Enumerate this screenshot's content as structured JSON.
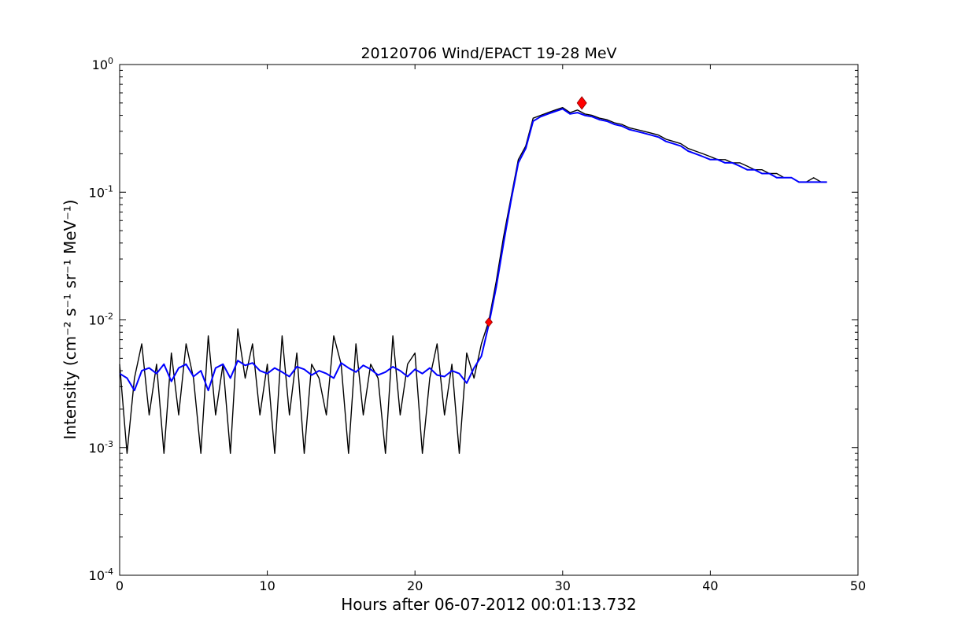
{
  "chart_data": {
    "type": "line",
    "title": "20120706 Wind/EPACT 19-28 MeV",
    "xlabel": "Hours after 06-07-2012 00:01:13.732",
    "ylabel": "Intensity (cm⁻² s⁻¹ sr⁻¹ MeV⁻¹)",
    "xlim": [
      0,
      50
    ],
    "ylim": [
      0.0001,
      1
    ],
    "yscale": "log",
    "grid": false,
    "x_ticks": [
      0,
      10,
      20,
      30,
      40,
      50
    ],
    "y_ticks": [
      {
        "value": 0.0001,
        "base": "10",
        "exp": "-4"
      },
      {
        "value": 0.001,
        "base": "10",
        "exp": "-3"
      },
      {
        "value": 0.01,
        "base": "10",
        "exp": "-2"
      },
      {
        "value": 0.1,
        "base": "10",
        "exp": "-1"
      },
      {
        "value": 1,
        "base": "10",
        "exp": "0"
      }
    ],
    "series": [
      {
        "role": "raw",
        "color": "#000000",
        "x": [
          0.0,
          0.5,
          1.0,
          1.5,
          2.0,
          2.5,
          3.0,
          3.5,
          4.0,
          4.5,
          5.0,
          5.5,
          6.0,
          6.5,
          7.0,
          7.5,
          8.0,
          8.5,
          9.0,
          9.5,
          10.0,
          10.5,
          11.0,
          11.5,
          12.0,
          12.5,
          13.0,
          13.5,
          14.0,
          14.5,
          15.0,
          15.5,
          16.0,
          16.5,
          17.0,
          17.5,
          18.0,
          18.5,
          19.0,
          19.5,
          20.0,
          20.5,
          21.0,
          21.5,
          22.0,
          22.5,
          23.0,
          23.5,
          24.0,
          24.5,
          25.0,
          25.5,
          26.0,
          26.5,
          27.0,
          27.5,
          28.0,
          28.5,
          29.0,
          29.5,
          30.0,
          30.5,
          31.0,
          31.5,
          32.0,
          32.5,
          33.0,
          33.5,
          34.0,
          34.5,
          35.0,
          35.5,
          36.0,
          36.5,
          37.0,
          37.5,
          38.0,
          38.5,
          39.0,
          39.5,
          40.0,
          40.5,
          41.0,
          41.5,
          42.0,
          42.5,
          43.0,
          43.5,
          44.0,
          44.5,
          45.0,
          45.5,
          46.0,
          46.5,
          47.0,
          47.5,
          47.9
        ],
        "y": [
          0.0045,
          0.0009,
          0.0035,
          0.0065,
          0.0018,
          0.0045,
          0.0009,
          0.0055,
          0.0018,
          0.0065,
          0.0035,
          0.0009,
          0.0075,
          0.0018,
          0.0045,
          0.0009,
          0.0085,
          0.0035,
          0.0065,
          0.0018,
          0.0045,
          0.0009,
          0.0075,
          0.0018,
          0.0055,
          0.0009,
          0.0045,
          0.0035,
          0.0018,
          0.0075,
          0.0045,
          0.0009,
          0.0065,
          0.0018,
          0.0045,
          0.0035,
          0.0009,
          0.0075,
          0.0018,
          0.0045,
          0.0055,
          0.0009,
          0.0035,
          0.0065,
          0.0018,
          0.0045,
          0.0009,
          0.0055,
          0.0035,
          0.0065,
          0.0098,
          0.02,
          0.045,
          0.09,
          0.18,
          0.23,
          0.38,
          0.4,
          0.42,
          0.44,
          0.46,
          0.42,
          0.44,
          0.41,
          0.4,
          0.38,
          0.37,
          0.35,
          0.34,
          0.32,
          0.31,
          0.3,
          0.29,
          0.28,
          0.26,
          0.25,
          0.24,
          0.22,
          0.21,
          0.2,
          0.19,
          0.18,
          0.18,
          0.17,
          0.17,
          0.16,
          0.15,
          0.15,
          0.14,
          0.14,
          0.13,
          0.13,
          0.12,
          0.12,
          0.13,
          0.12,
          0.12
        ]
      },
      {
        "role": "smoothed",
        "color": "#0000ff",
        "x": [
          0.0,
          0.5,
          1.0,
          1.5,
          2.0,
          2.5,
          3.0,
          3.5,
          4.0,
          4.5,
          5.0,
          5.5,
          6.0,
          6.5,
          7.0,
          7.5,
          8.0,
          8.5,
          9.0,
          9.5,
          10.0,
          10.5,
          11.0,
          11.5,
          12.0,
          12.5,
          13.0,
          13.5,
          14.0,
          14.5,
          15.0,
          15.5,
          16.0,
          16.5,
          17.0,
          17.5,
          18.0,
          18.5,
          19.0,
          19.5,
          20.0,
          20.5,
          21.0,
          21.5,
          22.0,
          22.5,
          23.0,
          23.5,
          24.0,
          24.5,
          25.0,
          25.5,
          26.0,
          26.5,
          27.0,
          27.5,
          28.0,
          28.5,
          29.0,
          29.5,
          30.0,
          30.5,
          31.0,
          31.5,
          32.0,
          32.5,
          33.0,
          33.5,
          34.0,
          34.5,
          35.0,
          35.5,
          36.0,
          36.5,
          37.0,
          37.5,
          38.0,
          38.5,
          39.0,
          39.5,
          40.0,
          40.5,
          41.0,
          41.5,
          42.0,
          42.5,
          43.0,
          43.5,
          44.0,
          44.5,
          45.0,
          45.5,
          46.0,
          46.5,
          47.0,
          47.5,
          47.9
        ],
        "y": [
          0.0038,
          0.0035,
          0.0028,
          0.004,
          0.0042,
          0.0038,
          0.0045,
          0.0033,
          0.0042,
          0.0045,
          0.0036,
          0.004,
          0.0028,
          0.0042,
          0.0045,
          0.0035,
          0.0048,
          0.0044,
          0.0046,
          0.004,
          0.0038,
          0.0042,
          0.0039,
          0.0036,
          0.0043,
          0.0041,
          0.0037,
          0.004,
          0.0038,
          0.0035,
          0.0046,
          0.0042,
          0.0039,
          0.0044,
          0.0041,
          0.0037,
          0.0039,
          0.0043,
          0.004,
          0.0036,
          0.0041,
          0.0038,
          0.0042,
          0.0037,
          0.0036,
          0.004,
          0.0038,
          0.0032,
          0.0042,
          0.0052,
          0.0092,
          0.018,
          0.04,
          0.085,
          0.17,
          0.22,
          0.36,
          0.39,
          0.41,
          0.43,
          0.45,
          0.41,
          0.42,
          0.4,
          0.39,
          0.37,
          0.36,
          0.34,
          0.33,
          0.31,
          0.3,
          0.29,
          0.28,
          0.27,
          0.25,
          0.24,
          0.23,
          0.21,
          0.2,
          0.19,
          0.18,
          0.18,
          0.17,
          0.17,
          0.16,
          0.15,
          0.15,
          0.14,
          0.14,
          0.13,
          0.13,
          0.13,
          0.12,
          0.12,
          0.12,
          0.12,
          0.12
        ]
      }
    ],
    "markers": [
      {
        "x": 25.0,
        "y": 0.0096,
        "color": "#ff0000",
        "shape": "diamond",
        "size": "small"
      },
      {
        "x": 31.3,
        "y": 0.5,
        "color": "#ff0000",
        "shape": "diamond",
        "size": "large"
      }
    ]
  }
}
